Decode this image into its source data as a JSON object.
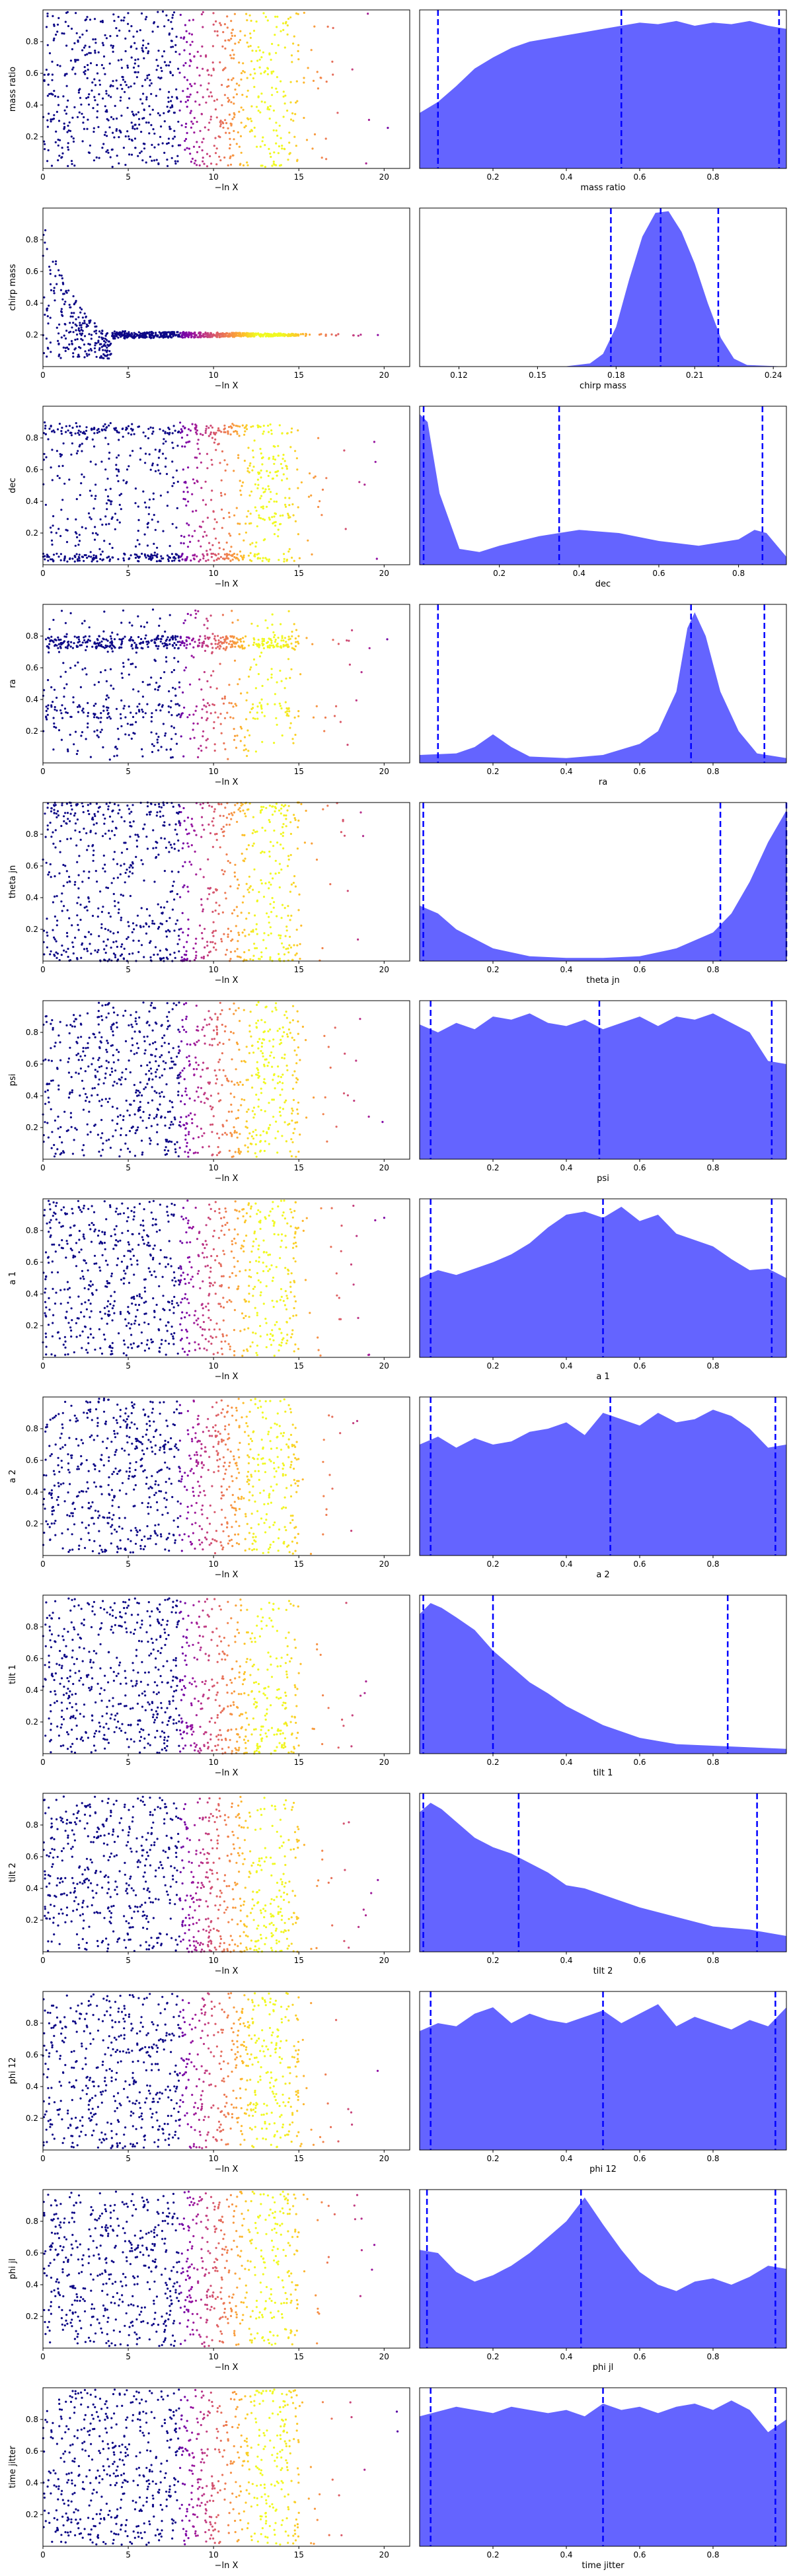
{
  "figure": {
    "rows": [
      {
        "ylabel": "mass ratio",
        "hist_xlabel": "mass ratio"
      },
      {
        "ylabel": "chirp mass",
        "hist_xlabel": "chirp mass"
      },
      {
        "ylabel": "dec",
        "hist_xlabel": "dec"
      },
      {
        "ylabel": "ra",
        "hist_xlabel": "ra"
      },
      {
        "ylabel": "theta jn",
        "hist_xlabel": "theta jn"
      },
      {
        "ylabel": "psi",
        "hist_xlabel": "psi"
      },
      {
        "ylabel": "a 1",
        "hist_xlabel": "a 1"
      },
      {
        "ylabel": "a 2",
        "hist_xlabel": "a 2"
      },
      {
        "ylabel": "tilt 1",
        "hist_xlabel": "tilt 1"
      },
      {
        "ylabel": "tilt 2",
        "hist_xlabel": "tilt 2"
      },
      {
        "ylabel": "phi 12",
        "hist_xlabel": "phi 12"
      },
      {
        "ylabel": "phi jl",
        "hist_xlabel": "phi jl"
      },
      {
        "ylabel": "time jitter",
        "hist_xlabel": "time jitter"
      }
    ],
    "trace_xlabel": "−ln X",
    "colors": {
      "points_low": "#0d0887",
      "points_mid": "#cc4778",
      "points_high": "#f0f921",
      "kde_fill": "#6464ff",
      "quantile_line": "#0000ff"
    }
  },
  "chart_data": [
    {
      "type": "scatter",
      "role": "nested-sampling trace",
      "xlabel": "−ln X",
      "ylabel": "mass ratio",
      "xlim": [
        0,
        21.5
      ],
      "ylim": [
        0.0,
        1.0
      ],
      "xticks": [
        0,
        5,
        10,
        15,
        20
      ],
      "yticks": [
        0.2,
        0.4,
        0.6,
        0.8
      ],
      "colormap": "plasma",
      "description_points": "dense uniform band, x 0-15 with sparse tail to 21"
    },
    {
      "type": "area",
      "role": "posterior KDE",
      "xlabel": "mass ratio",
      "xlim": [
        0.0,
        1.0
      ],
      "xticks": [
        0.2,
        0.4,
        0.6,
        0.8
      ],
      "quantiles": [
        0.05,
        0.55,
        0.98
      ],
      "x": [
        0.0,
        0.05,
        0.1,
        0.15,
        0.2,
        0.25,
        0.3,
        0.35,
        0.4,
        0.45,
        0.5,
        0.55,
        0.6,
        0.65,
        0.7,
        0.75,
        0.8,
        0.85,
        0.9,
        0.95,
        1.0
      ],
      "density": [
        0.35,
        0.42,
        0.52,
        0.63,
        0.7,
        0.76,
        0.8,
        0.82,
        0.84,
        0.86,
        0.88,
        0.9,
        0.92,
        0.91,
        0.93,
        0.9,
        0.92,
        0.91,
        0.93,
        0.9,
        0.88
      ]
    },
    {
      "type": "scatter",
      "role": "nested-sampling trace",
      "xlabel": "−ln X",
      "ylabel": "chirp mass",
      "xlim": [
        0,
        21.5
      ],
      "ylim": [
        0.0,
        1.0
      ],
      "xticks": [
        0,
        5,
        10,
        15,
        20
      ],
      "yticks": [
        0.2,
        0.4,
        0.6,
        0.8
      ],
      "colormap": "plasma",
      "description_points": "early broad spread collapsing to narrow band near 0.2"
    },
    {
      "type": "area",
      "role": "posterior KDE",
      "xlabel": "chirp mass",
      "xlim": [
        0.105,
        0.245
      ],
      "xticks": [
        0.12,
        0.15,
        0.18,
        0.21,
        0.24
      ],
      "xtick_labels": [
        "0.12",
        "0.15",
        "0.18",
        "0.21",
        "0.24"
      ],
      "quantiles": [
        0.178,
        0.197,
        0.219
      ],
      "x": [
        0.105,
        0.16,
        0.17,
        0.175,
        0.18,
        0.185,
        0.19,
        0.195,
        0.2,
        0.205,
        0.21,
        0.215,
        0.22,
        0.225,
        0.23,
        0.245
      ],
      "density": [
        0.0,
        0.0,
        0.02,
        0.08,
        0.25,
        0.55,
        0.82,
        0.97,
        0.98,
        0.85,
        0.65,
        0.4,
        0.18,
        0.05,
        0.01,
        0.0
      ]
    },
    {
      "type": "scatter",
      "role": "nested-sampling trace",
      "xlabel": "−ln X",
      "ylabel": "dec",
      "xlim": [
        0,
        21.5
      ],
      "ylim": [
        0.0,
        1.0
      ],
      "xticks": [
        0,
        5,
        10,
        15,
        20
      ],
      "yticks": [
        0.2,
        0.4,
        0.6,
        0.8
      ],
      "colormap": "plasma",
      "description_points": "concentration near 0.02 and 0.85"
    },
    {
      "type": "area",
      "role": "posterior KDE",
      "xlabel": "dec",
      "xlim": [
        0.0,
        0.92
      ],
      "xticks": [
        0.2,
        0.4,
        0.6,
        0.8
      ],
      "quantiles": [
        0.01,
        0.35,
        0.86
      ],
      "x": [
        0.0,
        0.02,
        0.05,
        0.1,
        0.15,
        0.2,
        0.3,
        0.4,
        0.5,
        0.6,
        0.7,
        0.8,
        0.84,
        0.87,
        0.92
      ],
      "density": [
        0.95,
        0.9,
        0.45,
        0.1,
        0.08,
        0.12,
        0.18,
        0.22,
        0.2,
        0.15,
        0.12,
        0.16,
        0.22,
        0.2,
        0.05
      ]
    },
    {
      "type": "scatter",
      "role": "nested-sampling trace",
      "xlabel": "−ln X",
      "ylabel": "ra",
      "xlim": [
        0,
        21.5
      ],
      "ylim": [
        0.0,
        1.0
      ],
      "xticks": [
        0,
        5,
        10,
        15,
        20
      ],
      "yticks": [
        0.2,
        0.4,
        0.6,
        0.8
      ],
      "colormap": "plasma",
      "description_points": "dense band near 0.75, secondary near 0.3"
    },
    {
      "type": "area",
      "role": "posterior KDE",
      "xlabel": "ra",
      "xlim": [
        0.0,
        1.0
      ],
      "xticks": [
        0.2,
        0.4,
        0.6,
        0.8
      ],
      "quantiles": [
        0.05,
        0.74,
        0.94
      ],
      "x": [
        0.0,
        0.1,
        0.15,
        0.2,
        0.25,
        0.3,
        0.4,
        0.5,
        0.6,
        0.65,
        0.7,
        0.73,
        0.75,
        0.78,
        0.82,
        0.87,
        0.92,
        1.0
      ],
      "density": [
        0.05,
        0.06,
        0.1,
        0.18,
        0.1,
        0.04,
        0.03,
        0.05,
        0.12,
        0.2,
        0.45,
        0.85,
        0.95,
        0.8,
        0.45,
        0.2,
        0.06,
        0.03
      ]
    },
    {
      "type": "scatter",
      "role": "nested-sampling trace",
      "xlabel": "−ln X",
      "ylabel": "theta jn",
      "xlim": [
        0,
        21.5
      ],
      "ylim": [
        0.0,
        1.0
      ],
      "xticks": [
        0,
        5,
        10,
        15,
        20
      ],
      "yticks": [
        0.2,
        0.4,
        0.6,
        0.8
      ],
      "colormap": "plasma",
      "description_points": "concentrated at extremes 0.02 and 0.95"
    },
    {
      "type": "area",
      "role": "posterior KDE",
      "xlabel": "theta jn",
      "xlim": [
        0.0,
        1.0
      ],
      "xticks": [
        0.2,
        0.4,
        0.6,
        0.8
      ],
      "quantiles": [
        0.01,
        0.82,
        1.0
      ],
      "x": [
        0.0,
        0.05,
        0.1,
        0.2,
        0.3,
        0.4,
        0.5,
        0.6,
        0.7,
        0.8,
        0.85,
        0.9,
        0.95,
        1.0
      ],
      "density": [
        0.35,
        0.3,
        0.2,
        0.08,
        0.03,
        0.02,
        0.02,
        0.03,
        0.08,
        0.18,
        0.3,
        0.5,
        0.75,
        0.95
      ]
    },
    {
      "type": "scatter",
      "role": "nested-sampling trace",
      "xlabel": "−ln X",
      "ylabel": "psi",
      "xlim": [
        0,
        21.5
      ],
      "ylim": [
        0.0,
        1.0
      ],
      "xticks": [
        0,
        5,
        10,
        15,
        20
      ],
      "yticks": [
        0.2,
        0.4,
        0.6,
        0.8
      ],
      "colormap": "plasma",
      "description_points": "uniform"
    },
    {
      "type": "area",
      "role": "posterior KDE",
      "xlabel": "psi",
      "xlim": [
        0.0,
        1.0
      ],
      "xticks": [
        0.2,
        0.4,
        0.6,
        0.8
      ],
      "quantiles": [
        0.03,
        0.49,
        0.96
      ],
      "x": [
        0.0,
        0.05,
        0.1,
        0.15,
        0.2,
        0.25,
        0.3,
        0.35,
        0.4,
        0.45,
        0.5,
        0.55,
        0.6,
        0.65,
        0.7,
        0.75,
        0.8,
        0.85,
        0.9,
        0.95,
        1.0
      ],
      "density": [
        0.85,
        0.8,
        0.86,
        0.82,
        0.9,
        0.88,
        0.92,
        0.86,
        0.84,
        0.88,
        0.82,
        0.86,
        0.9,
        0.84,
        0.9,
        0.88,
        0.92,
        0.86,
        0.8,
        0.62,
        0.6
      ]
    },
    {
      "type": "scatter",
      "role": "nested-sampling trace",
      "xlabel": "−ln X",
      "ylabel": "a 1",
      "xlim": [
        0,
        21.5
      ],
      "ylim": [
        0.0,
        1.0
      ],
      "xticks": [
        0,
        5,
        10,
        15,
        20
      ],
      "yticks": [
        0.2,
        0.4,
        0.6,
        0.8
      ],
      "colormap": "plasma",
      "description_points": "uniform"
    },
    {
      "type": "area",
      "role": "posterior KDE",
      "xlabel": "a 1",
      "xlim": [
        0.0,
        1.0
      ],
      "xticks": [
        0.2,
        0.4,
        0.6,
        0.8
      ],
      "quantiles": [
        0.03,
        0.5,
        0.96
      ],
      "x": [
        0.0,
        0.05,
        0.1,
        0.15,
        0.2,
        0.25,
        0.3,
        0.35,
        0.4,
        0.45,
        0.5,
        0.55,
        0.6,
        0.65,
        0.7,
        0.75,
        0.8,
        0.85,
        0.9,
        0.95,
        1.0
      ],
      "density": [
        0.5,
        0.55,
        0.52,
        0.56,
        0.6,
        0.65,
        0.72,
        0.82,
        0.9,
        0.92,
        0.88,
        0.95,
        0.86,
        0.9,
        0.78,
        0.74,
        0.7,
        0.62,
        0.55,
        0.56,
        0.5
      ]
    },
    {
      "type": "scatter",
      "role": "nested-sampling trace",
      "xlabel": "−ln X",
      "ylabel": "a 2",
      "xlim": [
        0,
        21.5
      ],
      "ylim": [
        0.0,
        1.0
      ],
      "xticks": [
        0,
        5,
        10,
        15,
        20
      ],
      "yticks": [
        0.2,
        0.4,
        0.6,
        0.8
      ],
      "colormap": "plasma",
      "description_points": "uniform"
    },
    {
      "type": "area",
      "role": "posterior KDE",
      "xlabel": "a 2",
      "xlim": [
        0.0,
        1.0
      ],
      "xticks": [
        0.2,
        0.4,
        0.6,
        0.8
      ],
      "quantiles": [
        0.03,
        0.52,
        0.97
      ],
      "x": [
        0.0,
        0.05,
        0.1,
        0.15,
        0.2,
        0.25,
        0.3,
        0.35,
        0.4,
        0.45,
        0.5,
        0.55,
        0.6,
        0.65,
        0.7,
        0.75,
        0.8,
        0.85,
        0.9,
        0.95,
        1.0
      ],
      "density": [
        0.7,
        0.75,
        0.68,
        0.74,
        0.7,
        0.72,
        0.78,
        0.8,
        0.84,
        0.76,
        0.9,
        0.86,
        0.82,
        0.9,
        0.84,
        0.86,
        0.92,
        0.88,
        0.8,
        0.68,
        0.7
      ]
    },
    {
      "type": "scatter",
      "role": "nested-sampling trace",
      "xlabel": "−ln X",
      "ylabel": "tilt 1",
      "xlim": [
        0,
        21.5
      ],
      "ylim": [
        0.0,
        1.0
      ],
      "xticks": [
        0,
        5,
        10,
        15,
        20
      ],
      "yticks": [
        0.2,
        0.4,
        0.6,
        0.8
      ],
      "colormap": "plasma",
      "description_points": "denser near low values"
    },
    {
      "type": "area",
      "role": "posterior KDE",
      "xlabel": "tilt 1",
      "xlim": [
        0.0,
        1.0
      ],
      "xticks": [
        0.2,
        0.4,
        0.6,
        0.8
      ],
      "quantiles": [
        0.01,
        0.2,
        0.84
      ],
      "x": [
        0.0,
        0.03,
        0.06,
        0.1,
        0.15,
        0.2,
        0.25,
        0.3,
        0.35,
        0.4,
        0.45,
        0.5,
        0.55,
        0.6,
        0.7,
        0.8,
        0.9,
        1.0
      ],
      "density": [
        0.88,
        0.95,
        0.92,
        0.86,
        0.78,
        0.65,
        0.55,
        0.45,
        0.38,
        0.3,
        0.24,
        0.18,
        0.14,
        0.1,
        0.06,
        0.05,
        0.04,
        0.03
      ]
    },
    {
      "type": "scatter",
      "role": "nested-sampling trace",
      "xlabel": "−ln X",
      "ylabel": "tilt 2",
      "xlim": [
        0,
        21.5
      ],
      "ylim": [
        0.0,
        1.0
      ],
      "xticks": [
        0,
        5,
        10,
        15,
        20
      ],
      "yticks": [
        0.2,
        0.4,
        0.6,
        0.8
      ],
      "colormap": "plasma",
      "description_points": "denser near low values"
    },
    {
      "type": "area",
      "role": "posterior KDE",
      "xlabel": "tilt 2",
      "xlim": [
        0.0,
        1.0
      ],
      "xticks": [
        0.2,
        0.4,
        0.6,
        0.8
      ],
      "quantiles": [
        0.01,
        0.27,
        0.92
      ],
      "x": [
        0.0,
        0.03,
        0.06,
        0.1,
        0.15,
        0.2,
        0.25,
        0.3,
        0.35,
        0.4,
        0.45,
        0.5,
        0.55,
        0.6,
        0.7,
        0.8,
        0.9,
        1.0
      ],
      "density": [
        0.88,
        0.94,
        0.9,
        0.82,
        0.72,
        0.66,
        0.62,
        0.56,
        0.5,
        0.42,
        0.4,
        0.36,
        0.32,
        0.28,
        0.22,
        0.16,
        0.14,
        0.1
      ]
    },
    {
      "type": "scatter",
      "role": "nested-sampling trace",
      "xlabel": "−ln X",
      "ylabel": "phi 12",
      "xlim": [
        0,
        21.5
      ],
      "ylim": [
        0.0,
        1.0
      ],
      "xticks": [
        0,
        5,
        10,
        15,
        20
      ],
      "yticks": [
        0.2,
        0.4,
        0.6,
        0.8
      ],
      "colormap": "plasma",
      "description_points": "uniform"
    },
    {
      "type": "area",
      "role": "posterior KDE",
      "xlabel": "phi 12",
      "xlim": [
        0.0,
        1.0
      ],
      "xticks": [
        0.2,
        0.4,
        0.6,
        0.8
      ],
      "quantiles": [
        0.03,
        0.5,
        0.97
      ],
      "x": [
        0.0,
        0.05,
        0.1,
        0.15,
        0.2,
        0.25,
        0.3,
        0.35,
        0.4,
        0.45,
        0.5,
        0.55,
        0.6,
        0.65,
        0.7,
        0.75,
        0.8,
        0.85,
        0.9,
        0.95,
        1.0
      ],
      "density": [
        0.75,
        0.8,
        0.78,
        0.86,
        0.9,
        0.8,
        0.86,
        0.82,
        0.8,
        0.84,
        0.88,
        0.8,
        0.86,
        0.92,
        0.78,
        0.84,
        0.8,
        0.76,
        0.82,
        0.78,
        0.9
      ]
    },
    {
      "type": "scatter",
      "role": "nested-sampling trace",
      "xlabel": "−ln X",
      "ylabel": "phi jl",
      "xlim": [
        0,
        21.5
      ],
      "ylim": [
        0.0,
        1.0
      ],
      "xticks": [
        0,
        5,
        10,
        15,
        20
      ],
      "yticks": [
        0.2,
        0.4,
        0.6,
        0.8
      ],
      "colormap": "plasma",
      "description_points": "uniform"
    },
    {
      "type": "area",
      "role": "posterior KDE",
      "xlabel": "phi jl",
      "xlim": [
        0.0,
        1.0
      ],
      "xticks": [
        0.2,
        0.4,
        0.6,
        0.8
      ],
      "quantiles": [
        0.02,
        0.44,
        0.97
      ],
      "x": [
        0.0,
        0.05,
        0.1,
        0.15,
        0.2,
        0.25,
        0.3,
        0.35,
        0.4,
        0.45,
        0.5,
        0.55,
        0.6,
        0.65,
        0.7,
        0.75,
        0.8,
        0.85,
        0.9,
        0.95,
        1.0
      ],
      "density": [
        0.62,
        0.6,
        0.48,
        0.42,
        0.46,
        0.52,
        0.6,
        0.7,
        0.8,
        0.95,
        0.78,
        0.62,
        0.48,
        0.4,
        0.36,
        0.42,
        0.44,
        0.4,
        0.45,
        0.52,
        0.5
      ]
    },
    {
      "type": "scatter",
      "role": "nested-sampling trace",
      "xlabel": "−ln X",
      "ylabel": "time jitter",
      "xlim": [
        0,
        21.5
      ],
      "ylim": [
        0.0,
        1.0
      ],
      "xticks": [
        0,
        5,
        10,
        15,
        20
      ],
      "yticks": [
        0.2,
        0.4,
        0.6,
        0.8
      ],
      "colormap": "plasma",
      "description_points": "uniform"
    },
    {
      "type": "area",
      "role": "posterior KDE",
      "xlabel": "time jitter",
      "xlim": [
        0.0,
        1.0
      ],
      "xticks": [
        0.2,
        0.4,
        0.6,
        0.8
      ],
      "quantiles": [
        0.03,
        0.5,
        0.97
      ],
      "x": [
        0.0,
        0.05,
        0.1,
        0.15,
        0.2,
        0.25,
        0.3,
        0.35,
        0.4,
        0.45,
        0.5,
        0.55,
        0.6,
        0.65,
        0.7,
        0.75,
        0.8,
        0.85,
        0.9,
        0.95,
        1.0
      ],
      "density": [
        0.82,
        0.85,
        0.88,
        0.86,
        0.84,
        0.88,
        0.86,
        0.84,
        0.86,
        0.82,
        0.9,
        0.86,
        0.88,
        0.84,
        0.88,
        0.9,
        0.86,
        0.92,
        0.86,
        0.72,
        0.8
      ]
    }
  ]
}
